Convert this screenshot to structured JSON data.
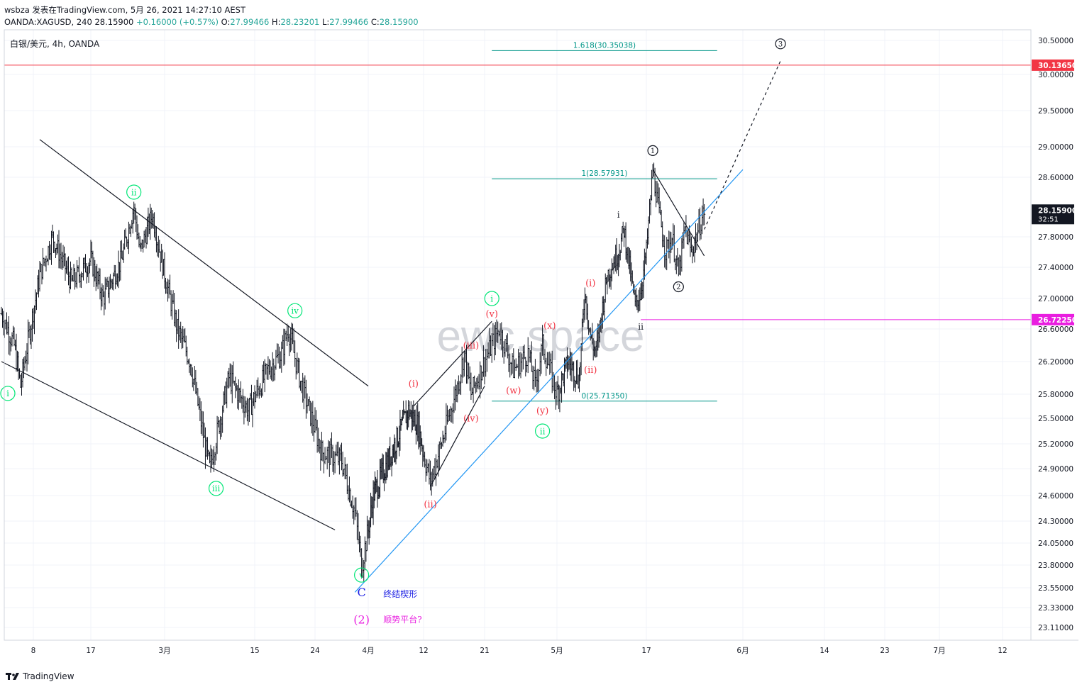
{
  "header": {
    "line1": "wsbza 发表在TradingView.com, 5月 26, 2021 14:27:10 AEST",
    "symbol": "OANDA:XAGUSD, 240",
    "last": "28.15900",
    "change": "+0.16000 (+0.57%)",
    "o_label": "O:",
    "o": "27.99466",
    "h_label": "H:",
    "h": "28.23201",
    "l_label": "L:",
    "l": "27.99466",
    "c_label": "C:",
    "c": "28.15900"
  },
  "footer": {
    "brand": "TradingView"
  },
  "colors": {
    "grid": "#f0f3fa",
    "candle": "#131722",
    "trendline_blue": "#2196f3",
    "fib": "#009688",
    "resistance": "#f23645",
    "support": "#e91ee0",
    "wave_green": "#00e676",
    "wave_red": "#f23645",
    "wave_blue": "#1f22e4",
    "wave_magenta": "#e91ee0",
    "watermark": "#b2b5be"
  },
  "chart_data": {
    "type": "candlestick",
    "title": "白银/美元, 4h, OANDA",
    "watermark": "ewc.space",
    "ylim": [
      22.9,
      30.7
    ],
    "y_ticks": [
      "30.50000",
      "30.00000",
      "29.50000",
      "29.00000",
      "28.60000",
      "27.80000",
      "27.40000",
      "27.00000",
      "26.60000",
      "26.20000",
      "25.80000",
      "25.50000",
      "25.20000",
      "24.90000",
      "24.60000",
      "24.30000",
      "24.05000",
      "23.80000",
      "23.55000",
      "23.33000",
      "23.11000"
    ],
    "y_tick_values": [
      30.5,
      30.0,
      29.5,
      29.0,
      28.6,
      27.8,
      27.4,
      27.0,
      26.6,
      26.2,
      25.8,
      25.5,
      25.2,
      24.9,
      24.6,
      24.3,
      24.05,
      23.8,
      23.55,
      23.33,
      23.11
    ],
    "x_ticks": [
      "8",
      "17",
      "3月",
      "15",
      "24",
      "4月",
      "12",
      "21",
      "5月",
      "17",
      "6月",
      "14",
      "23",
      "7月",
      "12"
    ],
    "x_tick_dates": [
      "2021-02-08",
      "2021-02-17",
      "2021-03-01",
      "2021-03-15",
      "2021-03-24",
      "2021-04-01",
      "2021-04-12",
      "2021-04-21",
      "2021-05-01",
      "2021-05-17",
      "2021-06-01",
      "2021-06-14",
      "2021-06-23",
      "2021-07-01",
      "2021-07-12"
    ],
    "price_labels": [
      {
        "text": "30.13650",
        "value": 30.1365,
        "style": "resistance"
      },
      {
        "text": "28.15900",
        "value": 28.159,
        "style": "last",
        "countdown": "32:51"
      },
      {
        "text": "26.72250",
        "value": 26.7225,
        "style": "support"
      }
    ],
    "horizontal_lines": [
      {
        "name": "resistance",
        "value": 30.1365,
        "style": "resistance"
      },
      {
        "name": "support",
        "value": 26.7225,
        "style": "support",
        "from": "2021-05-16"
      }
    ],
    "fib_levels": [
      {
        "label": "1.618(30.35038)",
        "value": 30.35038
      },
      {
        "label": "1(28.57931)",
        "value": 28.57931
      },
      {
        "label": "0(25.71350)",
        "value": 25.7135
      }
    ],
    "fib_range": [
      "2021-04-22",
      "2021-05-28"
    ],
    "ohlc_anchors": [
      {
        "date": "2021-02-03",
        "price": 26.8
      },
      {
        "date": "2021-02-05",
        "price": 26.4
      },
      {
        "date": "2021-02-06",
        "price": 25.9
      },
      {
        "date": "2021-02-09",
        "price": 27.3
      },
      {
        "date": "2021-02-11",
        "price": 27.8
      },
      {
        "date": "2021-02-14",
        "price": 27.2
      },
      {
        "date": "2021-02-17",
        "price": 27.5
      },
      {
        "date": "2021-02-19",
        "price": 27.0
      },
      {
        "date": "2021-02-22",
        "price": 27.5
      },
      {
        "date": "2021-02-24",
        "price": 28.2
      },
      {
        "date": "2021-02-25",
        "price": 27.6
      },
      {
        "date": "2021-02-27",
        "price": 28.1
      },
      {
        "date": "2021-03-01",
        "price": 27.3
      },
      {
        "date": "2021-03-03",
        "price": 26.6
      },
      {
        "date": "2021-03-05",
        "price": 26.2
      },
      {
        "date": "2021-03-07",
        "price": 25.3
      },
      {
        "date": "2021-03-08",
        "price": 24.9
      },
      {
        "date": "2021-03-11",
        "price": 26.0
      },
      {
        "date": "2021-03-14",
        "price": 25.6
      },
      {
        "date": "2021-03-17",
        "price": 26.1
      },
      {
        "date": "2021-03-19",
        "price": 26.3
      },
      {
        "date": "2021-03-20",
        "price": 26.6
      },
      {
        "date": "2021-03-22",
        "price": 25.9
      },
      {
        "date": "2021-03-25",
        "price": 25.1
      },
      {
        "date": "2021-03-28",
        "price": 25.0
      },
      {
        "date": "2021-03-30",
        "price": 24.4
      },
      {
        "date": "2021-03-31",
        "price": 23.8
      },
      {
        "date": "2021-04-02",
        "price": 24.6
      },
      {
        "date": "2021-04-05",
        "price": 25.0
      },
      {
        "date": "2021-04-07",
        "price": 25.3
      },
      {
        "date": "2021-04-09",
        "price": 25.6
      },
      {
        "date": "2021-04-11",
        "price": 25.4
      },
      {
        "date": "2021-04-13",
        "price": 24.75
      },
      {
        "date": "2021-04-15",
        "price": 25.3
      },
      {
        "date": "2021-04-17",
        "price": 25.9
      },
      {
        "date": "2021-04-18",
        "price": 26.3
      },
      {
        "date": "2021-04-19",
        "price": 25.8
      },
      {
        "date": "2021-04-21",
        "price": 26.2
      },
      {
        "date": "2021-04-23",
        "price": 26.6
      },
      {
        "date": "2021-04-25",
        "price": 26.1
      },
      {
        "date": "2021-04-27",
        "price": 26.3
      },
      {
        "date": "2021-04-28",
        "price": 25.9
      },
      {
        "date": "2021-04-29",
        "price": 26.4
      },
      {
        "date": "2021-05-01",
        "price": 25.8
      },
      {
        "date": "2021-05-03",
        "price": 26.2
      },
      {
        "date": "2021-05-05",
        "price": 26.0
      },
      {
        "date": "2021-05-06",
        "price": 27.1
      },
      {
        "date": "2021-05-07",
        "price": 26.5
      },
      {
        "date": "2021-05-08",
        "price": 26.3
      },
      {
        "date": "2021-05-10",
        "price": 27.3
      },
      {
        "date": "2021-05-12",
        "price": 27.6
      },
      {
        "date": "2021-05-13",
        "price": 27.9
      },
      {
        "date": "2021-05-14",
        "price": 27.4
      },
      {
        "date": "2021-05-15",
        "price": 26.9
      },
      {
        "date": "2021-05-16",
        "price": 27.1
      },
      {
        "date": "2021-05-17",
        "price": 27.6
      },
      {
        "date": "2021-05-18",
        "price": 28.7
      },
      {
        "date": "2021-05-19",
        "price": 28.1
      },
      {
        "date": "2021-05-20",
        "price": 27.6
      },
      {
        "date": "2021-05-21",
        "price": 27.8
      },
      {
        "date": "2021-05-22",
        "price": 27.3
      },
      {
        "date": "2021-05-23",
        "price": 27.9
      },
      {
        "date": "2021-05-24",
        "price": 27.6
      },
      {
        "date": "2021-05-26",
        "price": 28.15
      }
    ],
    "trendlines": [
      {
        "name": "channel-upper",
        "from": {
          "date": "2021-02-09",
          "price": 29.1
        },
        "to": {
          "date": "2021-04-01",
          "price": 25.9
        }
      },
      {
        "name": "channel-lower",
        "from": {
          "date": "2021-02-03",
          "price": 26.2
        },
        "to": {
          "date": "2021-03-27",
          "price": 24.2
        }
      },
      {
        "name": "wedge-upper",
        "from": {
          "date": "2021-04-10",
          "price": 25.65
        },
        "to": {
          "date": "2021-04-22",
          "price": 26.7
        }
      },
      {
        "name": "wedge-lower",
        "from": {
          "date": "2021-04-13",
          "price": 24.7
        },
        "to": {
          "date": "2021-04-21",
          "price": 25.9
        }
      },
      {
        "name": "support-trendline",
        "from": {
          "date": "2021-03-30",
          "price": 23.5
        },
        "to": {
          "date": "2021-06-01",
          "price": 28.7
        }
      },
      {
        "name": "triangle-upper",
        "from": {
          "date": "2021-05-18",
          "price": 28.7
        },
        "to": {
          "date": "2021-05-26",
          "price": 27.55
        }
      },
      {
        "name": "projection",
        "from": {
          "date": "2021-05-26",
          "price": 27.9
        },
        "to": {
          "date": "2021-06-07",
          "price": 30.2
        }
      }
    ],
    "wave_labels": [
      {
        "text": "i",
        "date": "2021-02-04",
        "price": 25.81,
        "style": "green-circle"
      },
      {
        "text": "ii",
        "date": "2021-02-24",
        "price": 28.4,
        "style": "green-circle"
      },
      {
        "text": "iii",
        "date": "2021-03-09",
        "price": 24.68,
        "style": "green-circle"
      },
      {
        "text": "iv",
        "date": "2021-03-21",
        "price": 26.84,
        "style": "green-circle"
      },
      {
        "text": "v",
        "date": "2021-03-31",
        "price": 23.69,
        "style": "green-circle"
      },
      {
        "text": "C",
        "date": "2021-03-31",
        "price": 23.5,
        "style": "blue"
      },
      {
        "text": "终结楔形",
        "date": "2021-04-04",
        "price": 23.48,
        "style": "blue-small"
      },
      {
        "text": "(2)",
        "date": "2021-03-31",
        "price": 23.2,
        "style": "magenta"
      },
      {
        "text": "顺势平台?",
        "date": "2021-04-04",
        "price": 23.2,
        "style": "magenta-small"
      },
      {
        "text": "(i)",
        "date": "2021-04-10",
        "price": 25.93,
        "style": "red"
      },
      {
        "text": "(ii)",
        "date": "2021-04-13",
        "price": 24.5,
        "style": "red"
      },
      {
        "text": "(iii)",
        "date": "2021-04-19",
        "price": 26.4,
        "style": "red"
      },
      {
        "text": "(iv)",
        "date": "2021-04-19",
        "price": 25.5,
        "style": "red"
      },
      {
        "text": "(v)",
        "date": "2021-04-22",
        "price": 26.8,
        "style": "red"
      },
      {
        "text": "i",
        "date": "2021-04-22",
        "price": 27.0,
        "style": "green-circle"
      },
      {
        "text": "(w)",
        "date": "2021-04-25",
        "price": 25.85,
        "style": "red"
      },
      {
        "text": "(x)",
        "date": "2021-04-30",
        "price": 26.65,
        "style": "red"
      },
      {
        "text": "(y)",
        "date": "2021-04-29",
        "price": 25.6,
        "style": "red"
      },
      {
        "text": "ii",
        "date": "2021-04-29",
        "price": 25.35,
        "style": "green-circle"
      },
      {
        "text": "(i)",
        "date": "2021-05-07",
        "price": 27.2,
        "style": "red"
      },
      {
        "text": "(ii)",
        "date": "2021-05-07",
        "price": 26.1,
        "style": "red"
      },
      {
        "text": "i",
        "date": "2021-05-12",
        "price": 28.1,
        "style": "dark"
      },
      {
        "text": "ii",
        "date": "2021-05-16",
        "price": 26.63,
        "style": "dark"
      },
      {
        "text": "1",
        "date": "2021-05-18",
        "price": 28.95,
        "style": "black-circle"
      },
      {
        "text": "2",
        "date": "2021-05-22",
        "price": 27.15,
        "style": "black-circle"
      },
      {
        "text": "3",
        "date": "2021-06-07",
        "price": 30.45,
        "style": "black-circle"
      }
    ]
  }
}
